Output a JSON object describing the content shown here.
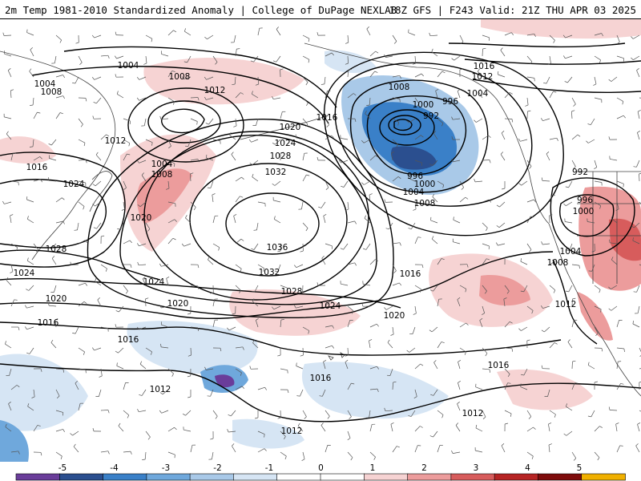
{
  "header": {
    "left": "2m Temp 1981-2010 Standardized Anomaly | College of DuPage NEXLAB",
    "right": "18Z GFS | F243 Valid: 21Z THU APR 03 2025"
  },
  "colors": {
    "cold": [
      "#6a3d9a",
      "#2b4f8f",
      "#3a80c8",
      "#6fa8dc",
      "#a9c9e8",
      "#d6e5f4"
    ],
    "warm": [
      "#f6d3d3",
      "#ec9c9c",
      "#d75c5c",
      "#b62424",
      "#7e0b0b",
      "#f0b000"
    ],
    "contour": "#000000",
    "coast": "#444444"
  },
  "isobars": [
    {
      "label": "1004",
      "positions": [
        [
          160,
          57
        ],
        [
          56,
          80
        ],
        [
          202,
          180
        ],
        [
          596,
          92
        ],
        [
          712,
          289
        ],
        [
          516,
          215
        ]
      ]
    },
    {
      "label": "1008",
      "positions": [
        [
          224,
          71
        ],
        [
          64,
          90
        ],
        [
          202,
          193
        ],
        [
          498,
          84
        ],
        [
          696,
          303
        ],
        [
          530,
          229
        ]
      ]
    },
    {
      "label": "1012",
      "positions": [
        [
          268,
          88
        ],
        [
          144,
          151
        ],
        [
          602,
          71
        ],
        [
          706,
          355
        ],
        [
          590,
          491
        ],
        [
          364,
          513
        ],
        [
          200,
          461
        ]
      ]
    },
    {
      "label": "1016",
      "positions": [
        [
          604,
          58
        ],
        [
          408,
          122
        ],
        [
          46,
          184
        ],
        [
          60,
          378
        ],
        [
          160,
          399
        ],
        [
          512,
          317
        ],
        [
          400,
          447
        ],
        [
          622,
          431
        ]
      ]
    },
    {
      "label": "1020",
      "positions": [
        [
          362,
          134
        ],
        [
          176,
          247
        ],
        [
          70,
          348
        ],
        [
          222,
          354
        ],
        [
          492,
          369
        ]
      ]
    },
    {
      "label": "1024",
      "positions": [
        [
          356,
          154
        ],
        [
          92,
          205
        ],
        [
          30,
          316
        ],
        [
          192,
          327
        ],
        [
          412,
          357
        ]
      ]
    },
    {
      "label": "1028",
      "positions": [
        [
          350,
          170
        ],
        [
          70,
          286
        ],
        [
          364,
          339
        ]
      ]
    },
    {
      "label": "1032",
      "positions": [
        [
          344,
          190
        ],
        [
          336,
          315
        ]
      ]
    },
    {
      "label": "1036",
      "positions": [
        [
          346,
          284
        ]
      ]
    },
    {
      "label": "1000",
      "positions": [
        [
          528,
          106
        ],
        [
          530,
          205
        ],
        [
          728,
          239
        ]
      ]
    },
    {
      "label": "996",
      "positions": [
        [
          562,
          102
        ],
        [
          518,
          195
        ],
        [
          730,
          225
        ]
      ]
    },
    {
      "label": "992",
      "positions": [
        [
          538,
          120
        ],
        [
          724,
          190
        ]
      ]
    }
  ],
  "colorbar": {
    "ticks": [
      "-5",
      "-4",
      "-3",
      "-2",
      "-1",
      "0",
      "1",
      "2",
      "3",
      "4",
      "5"
    ]
  }
}
